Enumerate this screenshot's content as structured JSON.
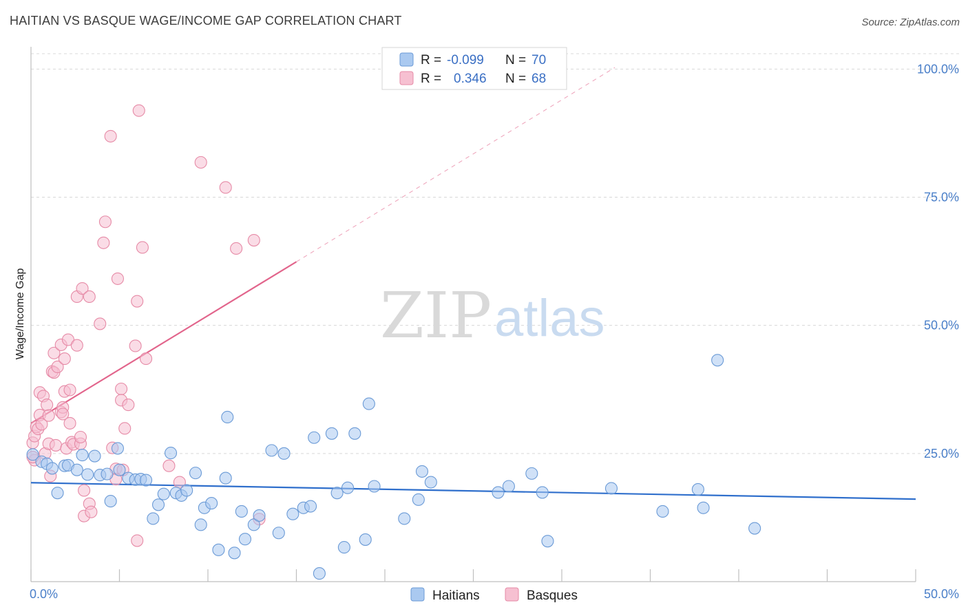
{
  "header": {
    "title": "HAITIAN VS BASQUE WAGE/INCOME GAP CORRELATION CHART",
    "source": "Source: ZipAtlas.com"
  },
  "watermark": {
    "zip": "ZIP",
    "atlas": "atlas"
  },
  "legend_top": {
    "rows": [
      {
        "r_label": "R =",
        "r_value": "-0.099",
        "n_label": "N =",
        "n_value": "70"
      },
      {
        "r_label": "R =",
        "r_value": "0.346",
        "n_label": "N =",
        "n_value": "68"
      }
    ]
  },
  "legend_bottom": {
    "items": [
      "Haitians",
      "Basques"
    ]
  },
  "colors": {
    "haitians_fill": "#aac9f0",
    "haitians_stroke": "#6a9ad6",
    "haitians_line": "#2f6fcc",
    "basques_fill": "#f6c0d1",
    "basques_stroke": "#e68aa6",
    "basques_line": "#e2658c",
    "tick_label": "#4a7fc9",
    "grid": "#d8d8d8"
  },
  "chart_data": {
    "type": "scatter",
    "title": "HAITIAN VS BASQUE WAGE/INCOME GAP CORRELATION CHART",
    "xlabel": "",
    "ylabel": "Wage/Income Gap",
    "xlim": [
      0,
      50
    ],
    "ylim": [
      0,
      103
    ],
    "x_tick_labels": [
      "0.0%",
      "50.0%"
    ],
    "y_tick_labels": [
      "25.0%",
      "50.0%",
      "75.0%",
      "100.0%"
    ],
    "y_ticks": [
      25,
      50,
      75,
      100
    ],
    "x_minor_ticks": [
      0,
      5,
      10,
      15,
      20,
      25,
      30,
      35,
      40,
      45,
      50
    ],
    "grid": true,
    "series": [
      {
        "name": "Haitians",
        "r": -0.099,
        "n": 70,
        "trend": {
          "x0": 0,
          "y0": 19.3,
          "x1": 50,
          "y1": 16.1
        },
        "points": [
          [
            0.1,
            24.8
          ],
          [
            0.6,
            23.4
          ],
          [
            0.9,
            23.0
          ],
          [
            1.2,
            22.1
          ],
          [
            1.5,
            17.3
          ],
          [
            1.9,
            22.6
          ],
          [
            2.1,
            22.7
          ],
          [
            2.6,
            21.8
          ],
          [
            2.9,
            24.7
          ],
          [
            3.2,
            20.9
          ],
          [
            3.6,
            24.5
          ],
          [
            3.9,
            20.8
          ],
          [
            4.3,
            21.0
          ],
          [
            4.5,
            15.7
          ],
          [
            4.9,
            26.0
          ],
          [
            5.0,
            21.8
          ],
          [
            5.5,
            20.2
          ],
          [
            5.9,
            19.9
          ],
          [
            6.2,
            20.0
          ],
          [
            6.5,
            19.8
          ],
          [
            6.9,
            12.3
          ],
          [
            7.2,
            15.0
          ],
          [
            7.5,
            17.1
          ],
          [
            7.9,
            25.1
          ],
          [
            8.2,
            17.3
          ],
          [
            8.5,
            16.8
          ],
          [
            8.8,
            17.8
          ],
          [
            9.3,
            21.2
          ],
          [
            9.6,
            11.1
          ],
          [
            9.8,
            14.4
          ],
          [
            10.2,
            15.3
          ],
          [
            10.6,
            6.2
          ],
          [
            11.0,
            20.2
          ],
          [
            11.1,
            32.1
          ],
          [
            11.5,
            5.6
          ],
          [
            11.9,
            13.7
          ],
          [
            12.1,
            8.3
          ],
          [
            12.6,
            11.1
          ],
          [
            12.9,
            12.9
          ],
          [
            13.6,
            25.6
          ],
          [
            14.0,
            9.5
          ],
          [
            14.3,
            25.0
          ],
          [
            14.8,
            13.2
          ],
          [
            15.4,
            14.4
          ],
          [
            15.8,
            14.7
          ],
          [
            16.0,
            28.1
          ],
          [
            16.3,
            1.6
          ],
          [
            17.0,
            28.9
          ],
          [
            17.3,
            17.3
          ],
          [
            17.7,
            6.7
          ],
          [
            17.9,
            18.3
          ],
          [
            18.3,
            28.9
          ],
          [
            18.9,
            8.2
          ],
          [
            19.4,
            18.6
          ],
          [
            19.1,
            34.7
          ],
          [
            21.1,
            12.3
          ],
          [
            21.9,
            16.0
          ],
          [
            22.1,
            21.5
          ],
          [
            22.6,
            19.4
          ],
          [
            26.4,
            17.4
          ],
          [
            27.0,
            18.6
          ],
          [
            28.3,
            21.1
          ],
          [
            28.9,
            17.4
          ],
          [
            29.2,
            7.9
          ],
          [
            32.8,
            18.2
          ],
          [
            35.7,
            13.7
          ],
          [
            37.7,
            18.0
          ],
          [
            38.8,
            43.2
          ],
          [
            38.0,
            14.4
          ],
          [
            40.9,
            10.4
          ]
        ]
      },
      {
        "name": "Basques",
        "r": 0.346,
        "n": 68,
        "trend": {
          "x0": 0,
          "y0": 30.9,
          "x1": 15,
          "y1": 62.4
        },
        "trend_dashed": {
          "x0": 15,
          "y0": 62.4,
          "x1": 33,
          "y1": 100.3
        },
        "points": [
          [
            0.1,
            27.1
          ],
          [
            0.2,
            23.7
          ],
          [
            0.2,
            28.4
          ],
          [
            0.3,
            30.2
          ],
          [
            0.4,
            29.8
          ],
          [
            0.5,
            32.5
          ],
          [
            0.5,
            36.9
          ],
          [
            0.6,
            30.7
          ],
          [
            0.7,
            36.2
          ],
          [
            0.8,
            25.0
          ],
          [
            0.9,
            34.5
          ],
          [
            1.0,
            32.4
          ],
          [
            1.0,
            26.9
          ],
          [
            1.1,
            20.6
          ],
          [
            1.2,
            41.0
          ],
          [
            1.3,
            40.8
          ],
          [
            1.3,
            44.6
          ],
          [
            1.4,
            26.6
          ],
          [
            1.5,
            41.9
          ],
          [
            1.7,
            46.2
          ],
          [
            1.7,
            33.1
          ],
          [
            1.8,
            34.0
          ],
          [
            1.8,
            32.7
          ],
          [
            1.9,
            43.5
          ],
          [
            1.9,
            37.1
          ],
          [
            2.0,
            26.0
          ],
          [
            2.1,
            47.2
          ],
          [
            2.2,
            30.9
          ],
          [
            2.2,
            37.4
          ],
          [
            2.3,
            27.2
          ],
          [
            2.4,
            26.8
          ],
          [
            2.6,
            55.6
          ],
          [
            2.6,
            46.1
          ],
          [
            2.8,
            26.9
          ],
          [
            2.8,
            28.2
          ],
          [
            2.9,
            57.2
          ],
          [
            3.0,
            17.8
          ],
          [
            3.0,
            12.8
          ],
          [
            3.3,
            55.6
          ],
          [
            3.3,
            15.2
          ],
          [
            3.4,
            13.6
          ],
          [
            3.9,
            50.3
          ],
          [
            4.1,
            66.1
          ],
          [
            4.2,
            70.2
          ],
          [
            4.5,
            86.9
          ],
          [
            4.6,
            26.1
          ],
          [
            4.8,
            22.0
          ],
          [
            4.8,
            20.0
          ],
          [
            4.9,
            59.1
          ],
          [
            5.1,
            37.6
          ],
          [
            5.1,
            35.4
          ],
          [
            5.2,
            21.8
          ],
          [
            5.3,
            29.9
          ],
          [
            5.5,
            34.5
          ],
          [
            5.9,
            46.0
          ],
          [
            6.0,
            54.7
          ],
          [
            6.0,
            8.0
          ],
          [
            6.1,
            91.9
          ],
          [
            6.3,
            65.2
          ],
          [
            6.5,
            43.5
          ],
          [
            7.8,
            22.6
          ],
          [
            8.4,
            19.4
          ],
          [
            9.6,
            81.8
          ],
          [
            11.0,
            76.9
          ],
          [
            11.6,
            65.0
          ],
          [
            12.6,
            66.6
          ],
          [
            12.9,
            12.2
          ],
          [
            0.1,
            24.3
          ]
        ]
      }
    ]
  }
}
